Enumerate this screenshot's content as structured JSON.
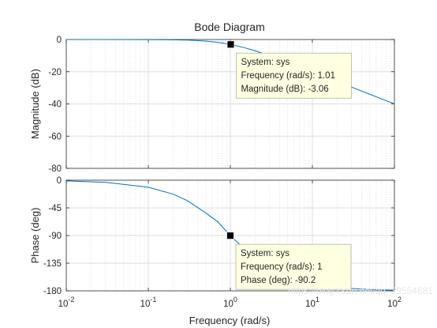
{
  "chart_data": {
    "type": "line",
    "title": "Bode Diagram",
    "xlabel": "Frequency  (rad/s)",
    "xscale": "log",
    "xlim": [
      0.01,
      100
    ],
    "x_ticks": [
      0.01,
      0.1,
      1,
      10,
      100
    ],
    "x_tick_labels": [
      {
        "base": "10",
        "exp": "-2"
      },
      {
        "base": "10",
        "exp": "-1"
      },
      {
        "base": "10",
        "exp": "0"
      },
      {
        "base": "10",
        "exp": "1"
      },
      {
        "base": "10",
        "exp": "2"
      }
    ],
    "grid": true,
    "line_color": "#0072bd",
    "panels": [
      {
        "name": "magnitude",
        "ylabel": "Magnitude (dB)",
        "ylim": [
          -80,
          0
        ],
        "yticks": [
          0,
          -20,
          -40,
          -60,
          -80
        ],
        "ytick_labels": [
          "0",
          "-20",
          "-40",
          "-60",
          "-80"
        ],
        "series": [
          {
            "x": [
              0.01,
              0.03,
              0.1,
              0.2,
              0.3,
              0.5,
              0.7,
              1,
              1.5,
              2,
              3,
              5,
              7,
              10,
              20,
              30,
              50,
              70,
              100
            ],
            "y": [
              0,
              0,
              -0.04,
              -0.17,
              -0.37,
              -0.97,
              -1.7,
              -3.01,
              -5.12,
              -6.99,
              -10.0,
              -14.15,
              -17.0,
              -20.04,
              -26.02,
              -29.54,
              -33.98,
              -36.9,
              -40.0
            ]
          }
        ],
        "datatip": {
          "x": 1.01,
          "y": -3.06,
          "lines": [
            "System: sys",
            "Frequency (rad/s): 1.01",
            "Magnitude (dB): -3.06"
          ]
        }
      },
      {
        "name": "phase",
        "ylabel": "Phase (deg)",
        "ylim": [
          -180,
          0
        ],
        "yticks": [
          0,
          -45,
          -90,
          -135,
          -180
        ],
        "ytick_labels": [
          "0",
          "-45",
          "-90",
          "-135",
          "-180"
        ],
        "series": [
          {
            "x": [
              0.01,
              0.03,
              0.1,
              0.2,
              0.3,
              0.5,
              0.7,
              1,
              1.5,
              2,
              3,
              5,
              7,
              10,
              20,
              30,
              50,
              70,
              100
            ],
            "y": [
              -1.1,
              -3.4,
              -11.4,
              -22.6,
              -33.4,
              -53.1,
              -67.4,
              -90.0,
              -112.6,
              -126.9,
              -143.1,
              -157.4,
              -163.7,
              -168.6,
              -174.3,
              -176.2,
              -177.7,
              -178.4,
              -178.9
            ]
          }
        ],
        "datatip": {
          "x": 1,
          "y": -90.2,
          "lines": [
            "System: sys",
            "Frequency (rad/s): 1",
            "Phase (deg): -90.2"
          ]
        }
      }
    ],
    "watermark": "https://blog.csdn.net/qq_39554681"
  }
}
